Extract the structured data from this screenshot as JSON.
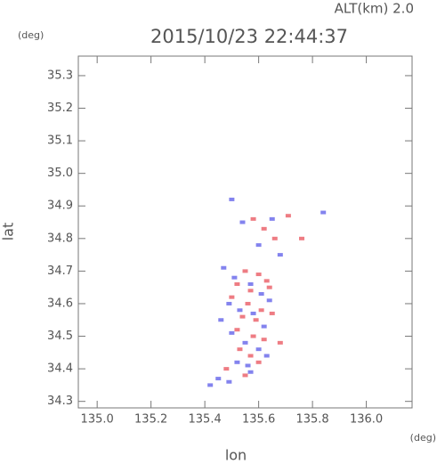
{
  "chart_data": {
    "type": "scatter",
    "title": "2015/10/23 22:44:37",
    "subtitle": "ALT(km) 2.0",
    "x_label": "lon",
    "y_label": "lat",
    "x_unit": "(deg)",
    "y_unit": "(deg)",
    "xlim": [
      134.93,
      136.17
    ],
    "ylim": [
      34.28,
      35.36
    ],
    "xticks": [
      {
        "value": 135,
        "label": "135.0"
      },
      135.2,
      135.4,
      135.6,
      135.8,
      {
        "value": 136,
        "label": "136.0"
      }
    ],
    "yticks": [
      34.3,
      34.4,
      34.5,
      34.6,
      34.7,
      34.8,
      34.9,
      {
        "value": 35,
        "label": "35.0"
      },
      35.1,
      35.2,
      35.3
    ],
    "series": [
      {
        "color": "#e8505a",
        "x": [
          135.58,
          135.62,
          135.66,
          135.71,
          135.55,
          135.6,
          135.63,
          135.52,
          135.57,
          135.64,
          135.5,
          135.56,
          135.61,
          135.54,
          135.59,
          135.65,
          135.52,
          135.58,
          135.62,
          135.53,
          135.57,
          135.48,
          135.55,
          135.76,
          135.68,
          135.6
        ],
        "y": [
          34.86,
          34.83,
          34.8,
          34.87,
          34.7,
          34.69,
          34.67,
          34.66,
          34.64,
          34.65,
          34.62,
          34.6,
          34.58,
          34.56,
          34.55,
          34.57,
          34.52,
          34.5,
          34.49,
          34.46,
          34.44,
          34.4,
          34.38,
          34.8,
          34.48,
          34.42
        ]
      },
      {
        "color": "#5a5ae8",
        "x": [
          135.5,
          135.54,
          135.6,
          135.65,
          135.68,
          135.84,
          135.47,
          135.51,
          135.57,
          135.61,
          135.64,
          135.49,
          135.53,
          135.58,
          135.62,
          135.46,
          135.5,
          135.55,
          135.6,
          135.63,
          135.52,
          135.57,
          135.45,
          135.49,
          135.42,
          135.56
        ],
        "y": [
          34.92,
          34.85,
          34.78,
          34.86,
          34.75,
          34.88,
          34.71,
          34.68,
          34.66,
          34.63,
          34.61,
          34.6,
          34.58,
          34.57,
          34.53,
          34.55,
          34.51,
          34.48,
          34.46,
          34.44,
          34.42,
          34.39,
          34.37,
          34.36,
          34.35,
          34.41
        ]
      }
    ]
  }
}
